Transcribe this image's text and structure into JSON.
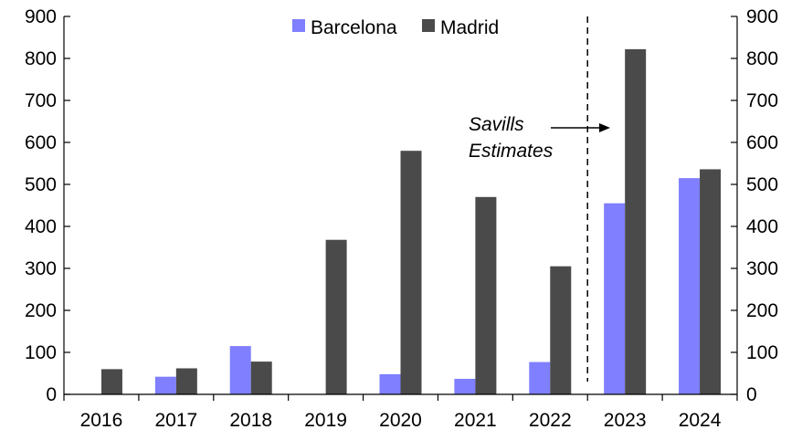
{
  "chart_data": {
    "type": "bar",
    "title": "",
    "xlabel": "",
    "ylabel": "",
    "categories": [
      "2016",
      "2017",
      "2018",
      "2019",
      "2020",
      "2021",
      "2022",
      "2023",
      "2024"
    ],
    "series": [
      {
        "name": "Barcelona",
        "color": "#7f7fff",
        "values": [
          0,
          42,
          115,
          0,
          48,
          37,
          77,
          455,
          515
        ]
      },
      {
        "name": "Madrid",
        "color": "#4a4a4a",
        "values": [
          60,
          62,
          78,
          368,
          580,
          470,
          305,
          822,
          536
        ]
      }
    ],
    "ylim": [
      0,
      900
    ],
    "yticks": [
      0,
      100,
      200,
      300,
      400,
      500,
      600,
      700,
      800,
      900
    ],
    "ytick_labels": [
      "0",
      "100",
      "200",
      "300",
      "400",
      "500",
      "600",
      "700",
      "800",
      "900"
    ],
    "secondary_ylim": [
      0,
      900
    ],
    "grid": false,
    "legend_position": "top-center",
    "estimate_divider_between": [
      "2022",
      "2023"
    ],
    "annotation": {
      "lines": [
        "Savills",
        "Estimates"
      ],
      "points_to": "2023"
    }
  }
}
